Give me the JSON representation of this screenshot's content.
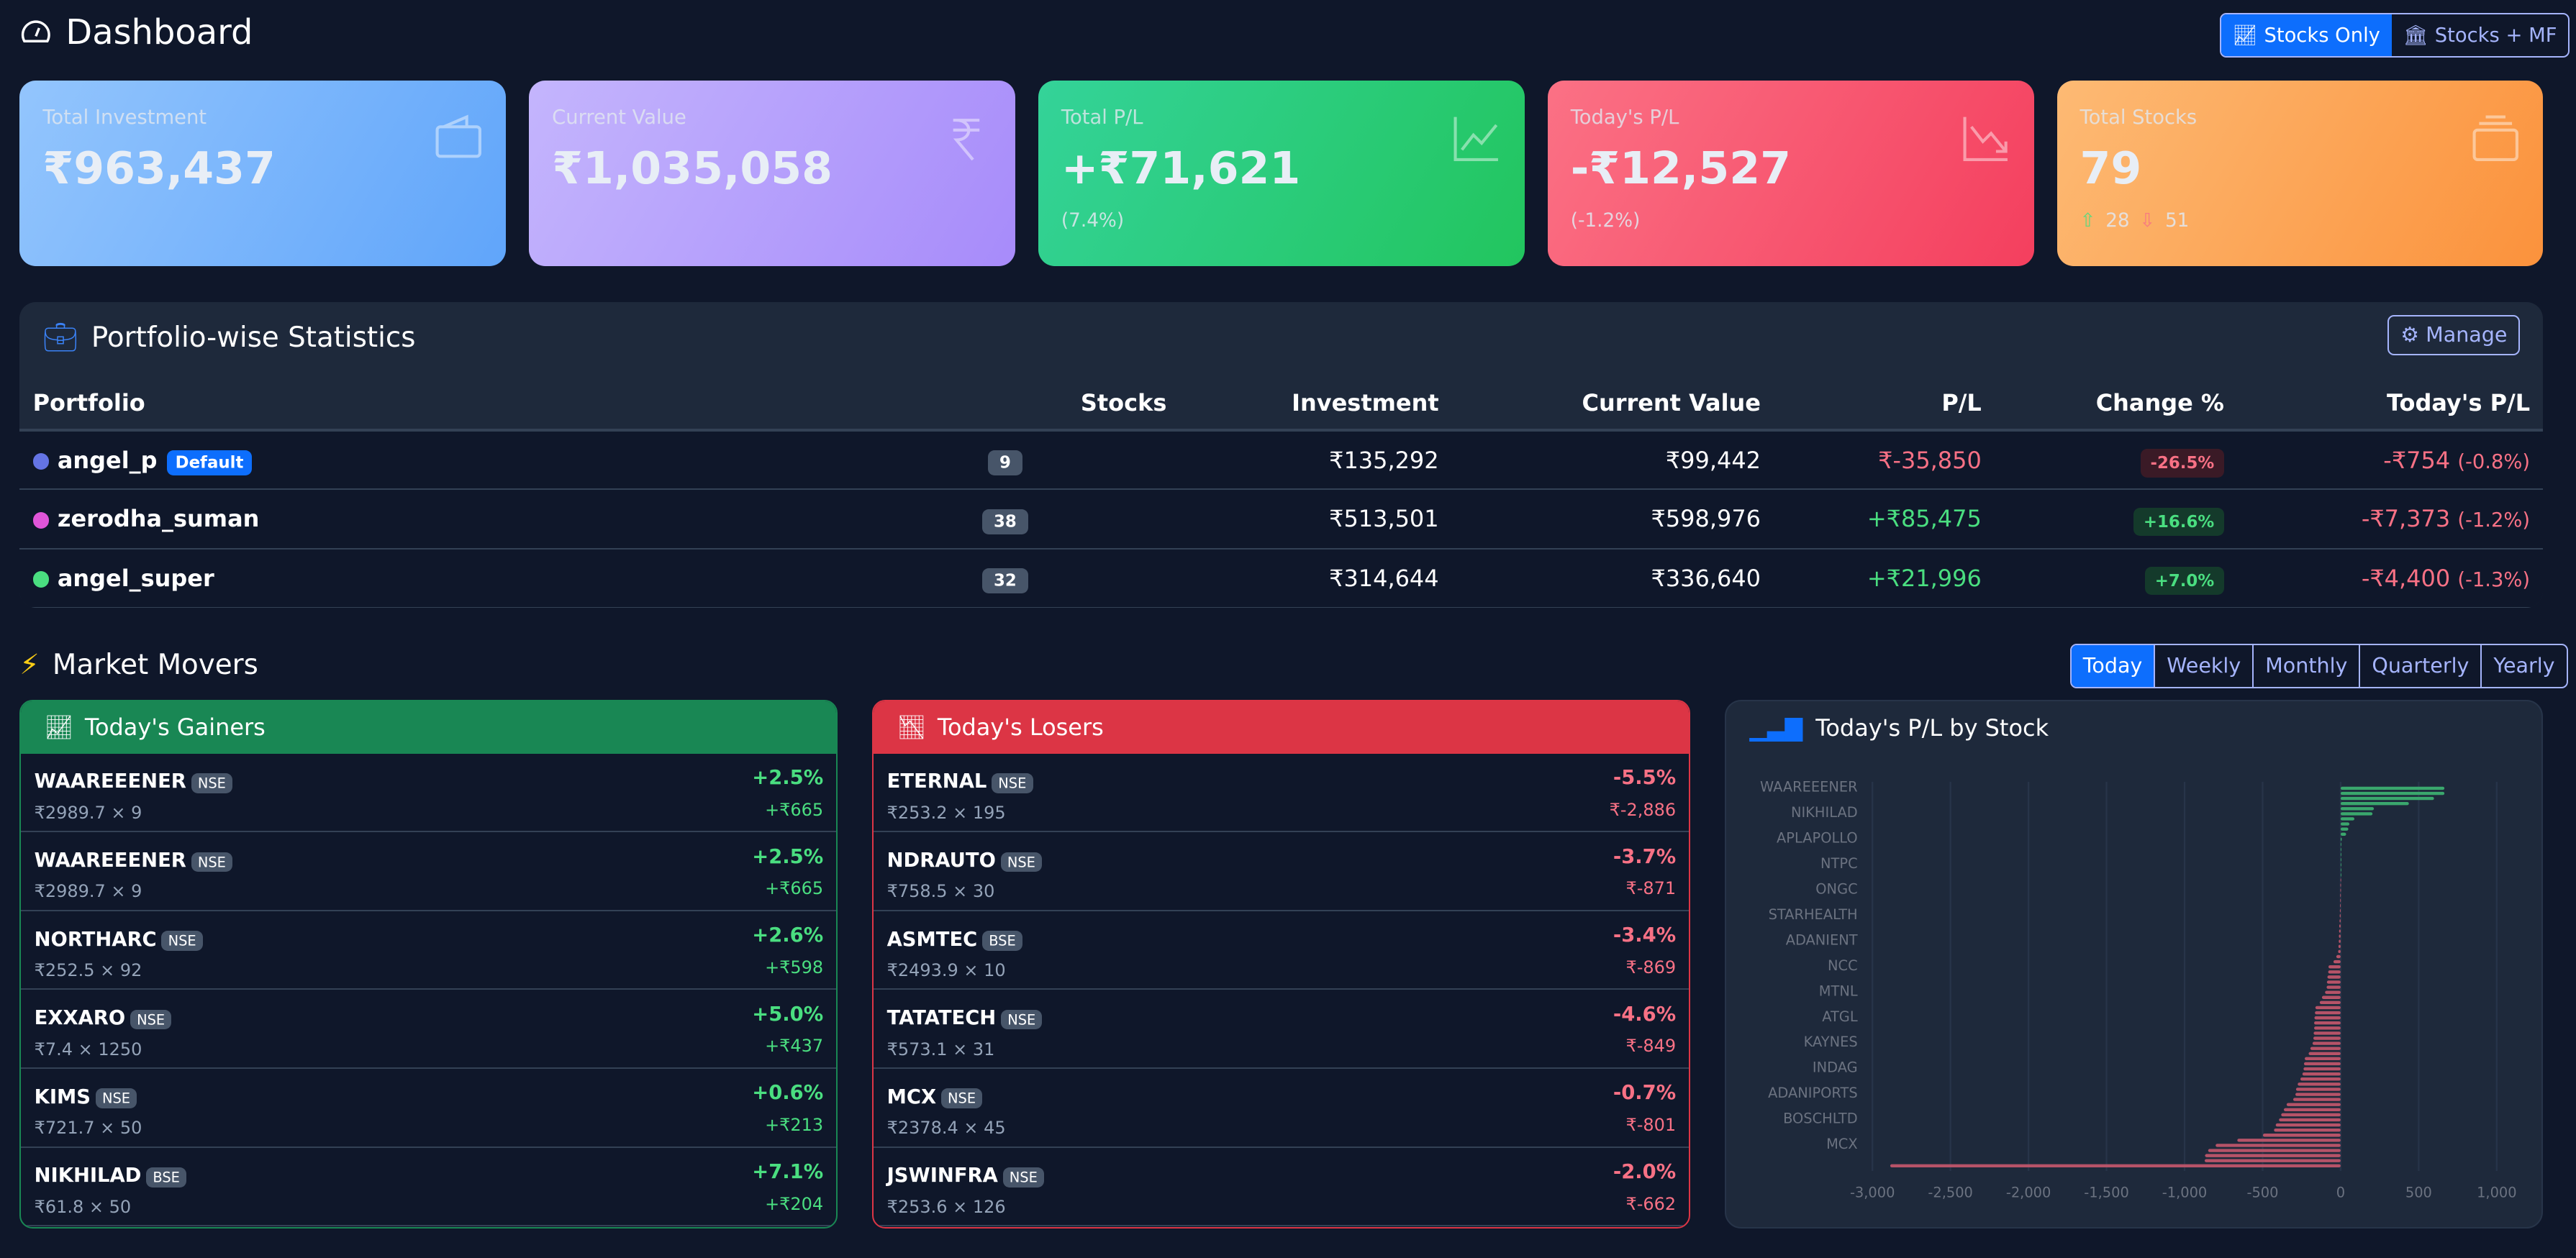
{
  "header": {
    "title": "Dashboard",
    "toggle": [
      {
        "label": "Stocks Only",
        "active": true
      },
      {
        "label": "Stocks + MF",
        "active": false
      }
    ]
  },
  "cards": [
    {
      "label": "Total Investment",
      "value": "₹963,437",
      "sub": "",
      "icon": "wallet-icon",
      "gradient": [
        "#93c5fd",
        "#60a5fa"
      ]
    },
    {
      "label": "Current Value",
      "value": "₹1,035,058",
      "sub": "",
      "icon": "rupee-icon",
      "gradient": [
        "#c4b5fd",
        "#a78bfa"
      ]
    },
    {
      "label": "Total P/L",
      "value": "+₹71,621",
      "sub": "(7.4%)",
      "icon": "chart-up-icon",
      "gradient": [
        "#34d399",
        "#22c55e"
      ]
    },
    {
      "label": "Today's P/L",
      "value": "-₹12,527",
      "sub": "(-1.2%)",
      "icon": "chart-down-icon",
      "gradient": [
        "#fb7185",
        "#f43f5e"
      ]
    },
    {
      "label": "Total Stocks",
      "value": "79",
      "gainers": "28",
      "losers": "51",
      "icon": "collection-icon",
      "gradient": [
        "#fdba74",
        "#fb923c"
      ]
    }
  ],
  "portfolio": {
    "title": "Portfolio-wise Statistics",
    "manage_label": "Manage",
    "columns": [
      "Portfolio",
      "Stocks",
      "Investment",
      "Current Value",
      "P/L",
      "Change %",
      "Today's P/L"
    ],
    "rows": [
      {
        "name": "angel_p",
        "color": "#6474e5",
        "default": "Default",
        "stocks": "9",
        "investment": "₹135,292",
        "current": "₹99,442",
        "pl": "₹-35,850",
        "change": "-26.5%",
        "today": "-₹754",
        "today_pct": "(-0.8%)",
        "pl_positive": false
      },
      {
        "name": "zerodha_suman",
        "color": "#e055d8",
        "stocks": "38",
        "investment": "₹513,501",
        "current": "₹598,976",
        "pl": "+₹85,475",
        "change": "+16.6%",
        "today": "-₹7,373",
        "today_pct": "(-1.2%)",
        "pl_positive": true
      },
      {
        "name": "angel_super",
        "color": "#4ade80",
        "stocks": "32",
        "investment": "₹314,644",
        "current": "₹336,640",
        "pl": "+₹21,996",
        "change": "+7.0%",
        "today": "-₹4,400",
        "today_pct": "(-1.3%)",
        "pl_positive": true
      }
    ]
  },
  "market_movers": {
    "title": "Market Movers",
    "periods": [
      {
        "label": "Today",
        "active": true
      },
      {
        "label": "Weekly"
      },
      {
        "label": "Monthly"
      },
      {
        "label": "Quarterly"
      },
      {
        "label": "Yearly"
      }
    ],
    "gainers": {
      "title": "Today's Gainers",
      "items": [
        {
          "symbol": "WAAREEENER",
          "exchange": "NSE",
          "detail": "₹2989.7 × 9",
          "pct": "+2.5%",
          "pl": "+₹665"
        },
        {
          "symbol": "WAAREEENER",
          "exchange": "NSE",
          "detail": "₹2989.7 × 9",
          "pct": "+2.5%",
          "pl": "+₹665"
        },
        {
          "symbol": "NORTHARC",
          "exchange": "NSE",
          "detail": "₹252.5 × 92",
          "pct": "+2.6%",
          "pl": "+₹598"
        },
        {
          "symbol": "EXXARO",
          "exchange": "NSE",
          "detail": "₹7.4 × 1250",
          "pct": "+5.0%",
          "pl": "+₹437"
        },
        {
          "symbol": "KIMS",
          "exchange": "NSE",
          "detail": "₹721.7 × 50",
          "pct": "+0.6%",
          "pl": "+₹213"
        },
        {
          "symbol": "NIKHILAD",
          "exchange": "BSE",
          "detail": "₹61.8 × 50",
          "pct": "+7.1%",
          "pl": "+₹204"
        }
      ]
    },
    "losers": {
      "title": "Today's Losers",
      "items": [
        {
          "symbol": "ETERNAL",
          "exchange": "NSE",
          "detail": "₹253.2 × 195",
          "pct": "-5.5%",
          "pl": "₹-2,886"
        },
        {
          "symbol": "NDRAUTO",
          "exchange": "NSE",
          "detail": "₹758.5 × 30",
          "pct": "-3.7%",
          "pl": "₹-871"
        },
        {
          "symbol": "ASMTEC",
          "exchange": "BSE",
          "detail": "₹2493.9 × 10",
          "pct": "-3.4%",
          "pl": "₹-869"
        },
        {
          "symbol": "TATATECH",
          "exchange": "NSE",
          "detail": "₹573.1 × 31",
          "pct": "-4.6%",
          "pl": "₹-849"
        },
        {
          "symbol": "MCX",
          "exchange": "NSE",
          "detail": "₹2378.4 × 45",
          "pct": "-0.7%",
          "pl": "₹-801"
        },
        {
          "symbol": "JSWINFRA",
          "exchange": "NSE",
          "detail": "₹253.6 × 126",
          "pct": "-2.0%",
          "pl": "₹-662"
        }
      ]
    }
  },
  "chart_data": {
    "type": "bar",
    "orientation": "horizontal",
    "title": "Today's P/L by Stock",
    "xlim": [
      -3000,
      1000
    ],
    "xticks": [
      -3000,
      -2500,
      -2000,
      -1500,
      -1000,
      -500,
      0,
      500,
      1000
    ],
    "xtick_labels": [
      "-3,000",
      "-2,500",
      "-2,000",
      "-1,500",
      "-1,000",
      "-500",
      "0",
      "500",
      "1,000"
    ],
    "grid": true,
    "colors": {
      "positive": "#3aa76d",
      "negative": "#b65368"
    },
    "categories": [
      "WAAREEENER",
      "",
      "",
      "",
      "",
      "NIKHILAD",
      "",
      "",
      "",
      "",
      "APLAPOLLO",
      "",
      "",
      "",
      "",
      "NTPC",
      "",
      "",
      "",
      "",
      "ONGC",
      "",
      "",
      "",
      "",
      "STARHEALTH",
      "",
      "",
      "",
      "",
      "ADANIENT",
      "",
      "",
      "",
      "",
      "NCC",
      "",
      "",
      "",
      "",
      "MTNL",
      "",
      "",
      "",
      "",
      "ATGL",
      "",
      "",
      "",
      "",
      "KAYNES",
      "",
      "",
      "",
      "",
      "INDAG",
      "",
      "",
      "",
      "",
      "ADANIPORTS",
      "",
      "",
      "",
      "",
      "BOSCHLTD",
      "",
      "",
      "",
      "",
      "MCX",
      "",
      "",
      "",
      ""
    ],
    "values": [
      665,
      665,
      598,
      437,
      213,
      204,
      88,
      56,
      49,
      35,
      7,
      4,
      2,
      1,
      1,
      0,
      0,
      0,
      -1,
      -2,
      -2,
      -3,
      -3,
      -4,
      -5,
      -6,
      -7,
      -9,
      -10,
      -11,
      -12,
      -14,
      -16,
      -28,
      -46,
      -78,
      -80,
      -85,
      -88,
      -90,
      -100,
      -120,
      -134,
      -162,
      -165,
      -168,
      -170,
      -170,
      -173,
      -175,
      -180,
      -194,
      -205,
      -230,
      -235,
      -238,
      -245,
      -258,
      -275,
      -286,
      -290,
      -304,
      -346,
      -364,
      -381,
      -395,
      -416,
      -427,
      -498,
      -662,
      -801,
      -849,
      -869,
      -871,
      -2886
    ]
  }
}
